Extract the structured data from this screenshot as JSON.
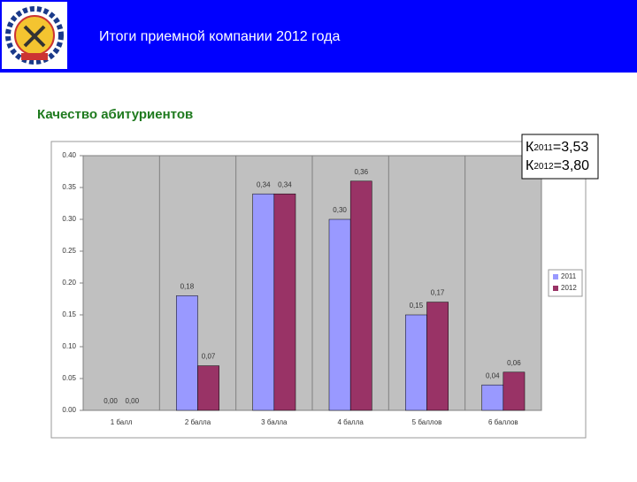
{
  "header": {
    "title": "Итоги приемной компании 2012 года"
  },
  "subtitle": "Качество абитуриентов",
  "k_box": [
    {
      "letter": "К",
      "year": "2011",
      "value": "=3,53"
    },
    {
      "letter": "К",
      "year": "2012",
      "value": "=3,80"
    }
  ],
  "chart_data": {
    "type": "bar",
    "categories": [
      "1 балл",
      "2 балла",
      "3 балла",
      "4 балла",
      "5 баллов",
      "6 баллов"
    ],
    "series": [
      {
        "name": "2011",
        "color": "#9999ff",
        "values": [
          0.0,
          0.18,
          0.34,
          0.3,
          0.15,
          0.04
        ],
        "value_labels": [
          "0,00",
          "0,18",
          "0,34",
          "0,30",
          "0,15",
          "0,04"
        ]
      },
      {
        "name": "2012",
        "color": "#993366",
        "values": [
          0.0,
          0.07,
          0.34,
          0.36,
          0.17,
          0.06
        ],
        "value_labels": [
          "0,00",
          "0,07",
          "0,34",
          "0,36",
          "0,17",
          "0,06"
        ]
      }
    ],
    "ylim": [
      0,
      0.4
    ],
    "yticks": [
      {
        "value": 0,
        "label": "0.00"
      },
      {
        "value": 0.05,
        "label": "0.05"
      },
      {
        "value": 0.1,
        "label": "0.10"
      },
      {
        "value": 0.15,
        "label": "0.15"
      },
      {
        "value": 0.2,
        "label": "0.20"
      },
      {
        "value": 0.25,
        "label": "0.25"
      },
      {
        "value": 0.3,
        "label": "0.30"
      },
      {
        "value": 0.35,
        "label": "0.35"
      },
      {
        "value": 0.4,
        "label": "0.40"
      }
    ],
    "legend": "right"
  }
}
